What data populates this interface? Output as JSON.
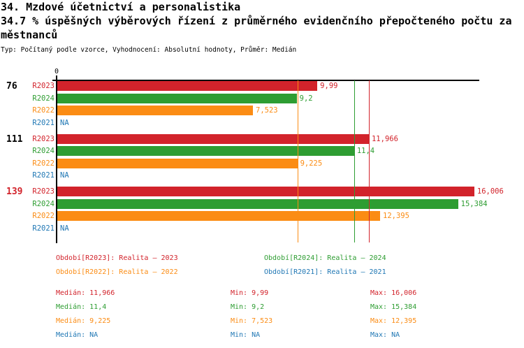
{
  "header": {
    "title": "34. Mzdové účetnictví a personalistika",
    "subtitle_line1": "34.7 % úspěšných výběrových řízení z průměrného evidenčního přepočteného počtu za",
    "subtitle_line2": "městnanců",
    "meta": "Typ: Počítaný podle vzorce, Vyhodnocení: Absolutní hodnoty, Průměr: Medián"
  },
  "colors": {
    "R2023": "#d2232b",
    "R2024": "#2e9d32",
    "R2022": "#fb8c14",
    "R2021": "#1f77b4",
    "axis": "#000000"
  },
  "chart_data": {
    "type": "bar",
    "orientation": "horizontal",
    "x_axis": {
      "min": 0,
      "tick_labels": [
        "0"
      ]
    },
    "series_order": [
      "R2023",
      "R2024",
      "R2022",
      "R2021"
    ],
    "groups": [
      {
        "label": "76",
        "label_color": "#000000",
        "rows": [
          {
            "series": "R2023",
            "display": "9,99",
            "value": 9.99
          },
          {
            "series": "R2024",
            "display": "9,2",
            "value": 9.2
          },
          {
            "series": "R2022",
            "display": "7,523",
            "value": 7.523
          },
          {
            "series": "R2021",
            "display": "NA",
            "value": null
          }
        ]
      },
      {
        "label": "111",
        "label_color": "#000000",
        "rows": [
          {
            "series": "R2023",
            "display": "11,966",
            "value": 11.966
          },
          {
            "series": "R2024",
            "display": "11,4",
            "value": 11.4
          },
          {
            "series": "R2022",
            "display": "9,225",
            "value": 9.225
          },
          {
            "series": "R2021",
            "display": "NA",
            "value": null
          }
        ]
      },
      {
        "label": "139",
        "label_color": "#d2232b",
        "rows": [
          {
            "series": "R2023",
            "display": "16,006",
            "value": 16.006
          },
          {
            "series": "R2024",
            "display": "15,384",
            "value": 15.384
          },
          {
            "series": "R2022",
            "display": "12,395",
            "value": 12.395
          },
          {
            "series": "R2021",
            "display": "NA",
            "value": null
          }
        ]
      }
    ],
    "median_lines": [
      {
        "series": "R2022",
        "value": 9.225
      },
      {
        "series": "R2024",
        "value": 11.4
      },
      {
        "series": "R2023",
        "value": 11.966
      }
    ]
  },
  "legend": {
    "items": [
      {
        "series": "R2023",
        "label": "Období[R2023]: Realita – 2023"
      },
      {
        "series": "R2024",
        "label": "Období[R2024]: Realita – 2024"
      },
      {
        "series": "R2022",
        "label": "Období[R2022]: Realita – 2022"
      },
      {
        "series": "R2021",
        "label": "Období[R2021]: Realita – 2021"
      }
    ]
  },
  "stats": {
    "rows": [
      {
        "series": "R2023",
        "median": "Medián: 11,966",
        "min": "Min: 9,99",
        "max": "Max: 16,006"
      },
      {
        "series": "R2024",
        "median": "Medián: 11,4",
        "min": "Min: 9,2",
        "max": "Max: 15,384"
      },
      {
        "series": "R2022",
        "median": "Medián: 9,225",
        "min": "Min: 7,523",
        "max": "Max: 12,395"
      },
      {
        "series": "R2021",
        "median": "Medián: NA",
        "min": "Min: NA",
        "max": "Max: NA"
      }
    ]
  }
}
